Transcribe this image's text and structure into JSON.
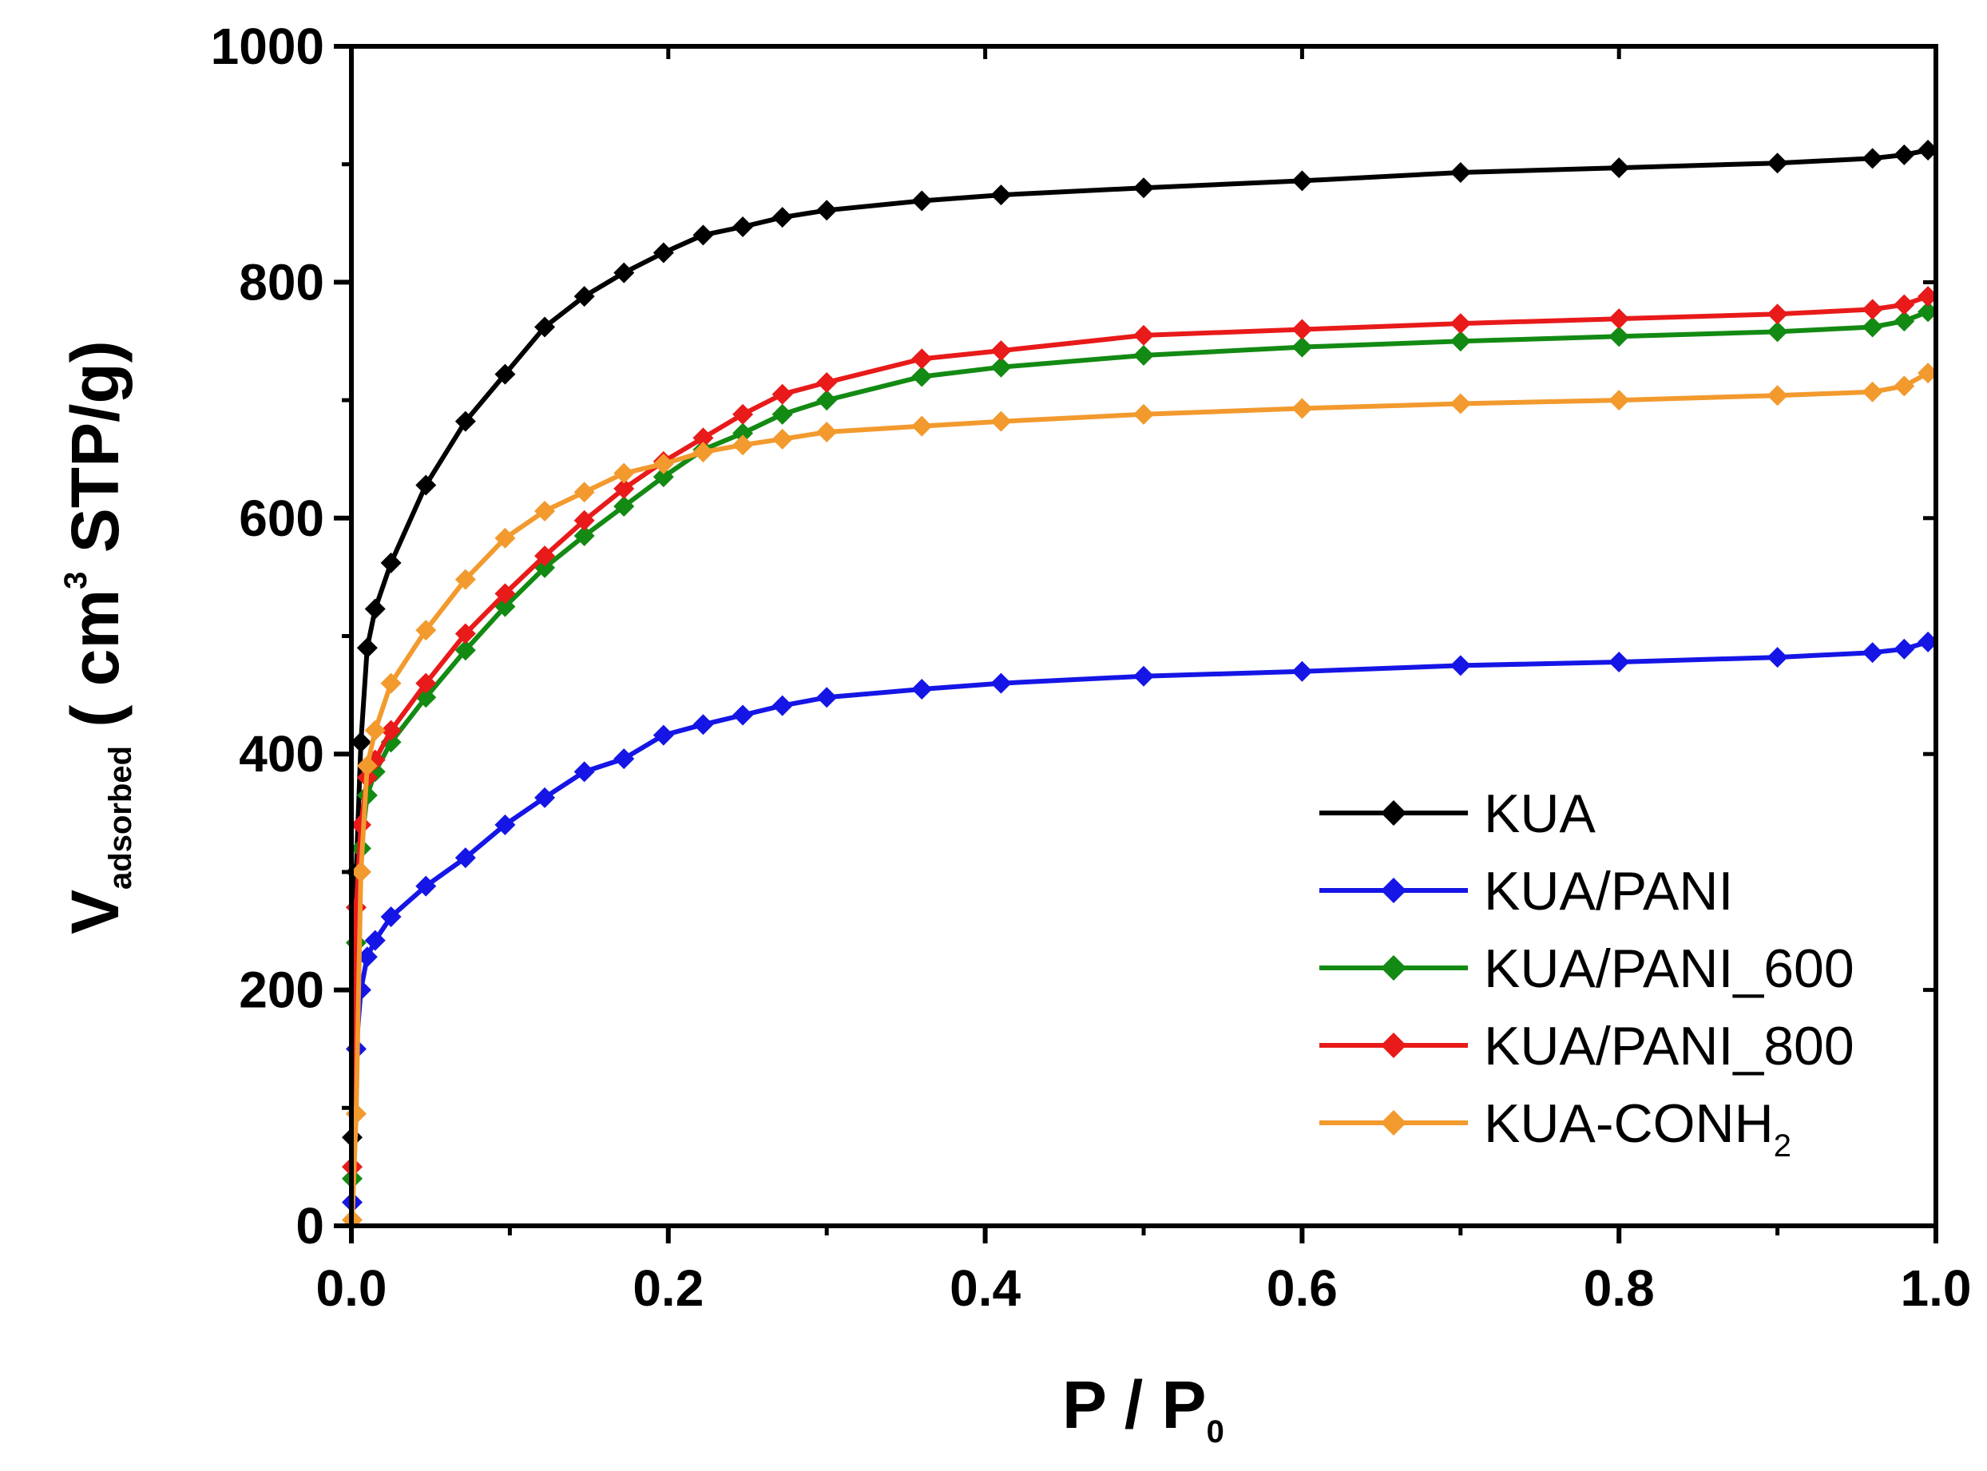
{
  "chart_data": {
    "type": "line",
    "title": "",
    "xlabel": {
      "main": "P / P",
      "sub": "0"
    },
    "ylabel": {
      "main": "V",
      "sub": "adsorbed",
      "unit_open": " ( cm",
      "sup": "3",
      "unit_close": " STP/g)"
    },
    "xlim": [
      0,
      1.0
    ],
    "ylim": [
      0,
      1000
    ],
    "x_ticks": [
      0.0,
      0.2,
      0.4,
      0.6,
      0.8,
      1.0
    ],
    "x_tick_labels": [
      "0.0",
      "0.2",
      "0.4",
      "0.6",
      "0.8",
      "1.0"
    ],
    "y_ticks": [
      0,
      200,
      400,
      600,
      800,
      1000
    ],
    "y_tick_labels": [
      "0",
      "200",
      "400",
      "600",
      "800",
      "1000"
    ],
    "legend_position": "bottom-right",
    "series": [
      {
        "name": "KUA",
        "name_sub": "",
        "color": "#000000",
        "x": [
          0.0005,
          0.003,
          0.006,
          0.01,
          0.015,
          0.025,
          0.047,
          0.072,
          0.097,
          0.122,
          0.147,
          0.172,
          0.197,
          0.222,
          0.247,
          0.272,
          0.3,
          0.36,
          0.41,
          0.5,
          0.6,
          0.7,
          0.8,
          0.9,
          0.96,
          0.98,
          0.995
        ],
        "y": [
          75,
          300,
          410,
          490,
          523,
          562,
          628,
          682,
          722,
          762,
          788,
          808,
          825,
          840,
          847,
          855,
          861,
          869,
          874,
          880,
          886,
          893,
          897,
          901,
          905,
          908,
          912
        ]
      },
      {
        "name": "KUA/PANI",
        "name_sub": "",
        "color": "#1515e6",
        "x": [
          0.0005,
          0.003,
          0.006,
          0.01,
          0.015,
          0.025,
          0.047,
          0.072,
          0.097,
          0.122,
          0.147,
          0.172,
          0.197,
          0.222,
          0.247,
          0.272,
          0.3,
          0.36,
          0.41,
          0.5,
          0.6,
          0.7,
          0.8,
          0.9,
          0.96,
          0.98,
          0.995
        ],
        "y": [
          20,
          150,
          200,
          228,
          242,
          262,
          288,
          312,
          340,
          363,
          385,
          396,
          416,
          425,
          433,
          441,
          448,
          455,
          460,
          466,
          470,
          475,
          478,
          482,
          486,
          489,
          495
        ]
      },
      {
        "name": "KUA/PANI_600",
        "name_sub": "",
        "color": "#138a13",
        "x": [
          0.0005,
          0.003,
          0.006,
          0.01,
          0.015,
          0.025,
          0.047,
          0.072,
          0.097,
          0.122,
          0.147,
          0.172,
          0.197,
          0.222,
          0.247,
          0.272,
          0.3,
          0.36,
          0.41,
          0.5,
          0.6,
          0.7,
          0.8,
          0.9,
          0.96,
          0.98,
          0.995
        ],
        "y": [
          40,
          240,
          320,
          365,
          385,
          410,
          448,
          488,
          525,
          558,
          585,
          610,
          635,
          658,
          672,
          688,
          700,
          720,
          728,
          738,
          745,
          750,
          754,
          758,
          762,
          767,
          775
        ]
      },
      {
        "name": "KUA/PANI_800",
        "name_sub": "",
        "color": "#e81a1a",
        "x": [
          0.0005,
          0.003,
          0.006,
          0.01,
          0.015,
          0.025,
          0.047,
          0.072,
          0.097,
          0.122,
          0.147,
          0.172,
          0.197,
          0.222,
          0.247,
          0.272,
          0.3,
          0.36,
          0.41,
          0.5,
          0.6,
          0.7,
          0.8,
          0.9,
          0.96,
          0.98,
          0.995
        ],
        "y": [
          50,
          270,
          340,
          380,
          395,
          420,
          460,
          502,
          536,
          568,
          598,
          625,
          648,
          668,
          688,
          705,
          715,
          735,
          742,
          755,
          760,
          765,
          769,
          773,
          777,
          781,
          788
        ]
      },
      {
        "name": "KUA-CONH",
        "name_sub": "2",
        "color": "#f29a2e",
        "x": [
          0.0005,
          0.003,
          0.006,
          0.01,
          0.015,
          0.025,
          0.047,
          0.072,
          0.097,
          0.122,
          0.147,
          0.172,
          0.197,
          0.222,
          0.247,
          0.272,
          0.3,
          0.36,
          0.41,
          0.5,
          0.6,
          0.7,
          0.8,
          0.9,
          0.96,
          0.98,
          0.995
        ],
        "y": [
          5,
          95,
          300,
          390,
          420,
          460,
          505,
          548,
          583,
          606,
          622,
          638,
          646,
          656,
          662,
          667,
          673,
          678,
          682,
          688,
          693,
          697,
          700,
          704,
          707,
          712,
          723
        ]
      }
    ]
  }
}
